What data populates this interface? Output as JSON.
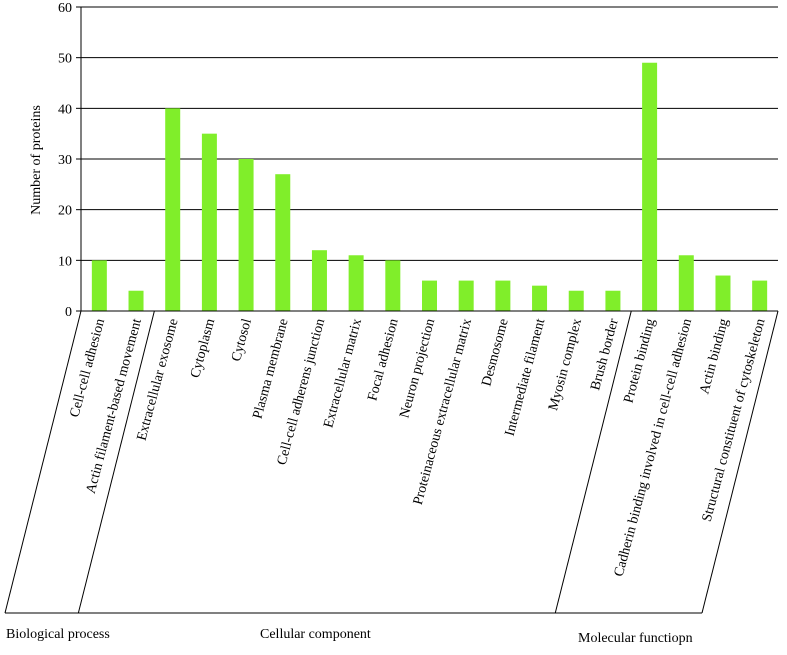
{
  "chart_data": {
    "type": "bar",
    "ylabel": "Number of proteins",
    "ylim": [
      0,
      60
    ],
    "yticks": [
      0,
      10,
      20,
      30,
      40,
      50,
      60
    ],
    "grid": true,
    "bar_color": "#80ee2a",
    "categories": [
      "Cell-cell adhesion",
      "Actin filament-based movement",
      "Extracellular exosome",
      "Cytoplasm",
      "Cytosol",
      "Plasma membrane",
      "Cell-cell adherens junction",
      "Extracellular matrix",
      "Focal adhesion",
      "Neuron projection",
      "Proteinaceous extracellular matrix",
      "Desmosome",
      "Intermediate filament",
      "Myosin complex",
      "Brush border",
      "Protein binding",
      "Cadherin binding involved in cell-cell adhesion",
      "Actin binding",
      "Structural constituent of cytoskeleton"
    ],
    "values": [
      10,
      4,
      40,
      35,
      30,
      27,
      12,
      11,
      10,
      6,
      6,
      6,
      5,
      4,
      4,
      49,
      11,
      7,
      6
    ],
    "groups": [
      {
        "name": "Biological process",
        "start": 0,
        "end": 1
      },
      {
        "name": "Cellular component",
        "start": 2,
        "end": 14
      },
      {
        "name": "Molecular functiopn",
        "start": 15,
        "end": 18
      }
    ]
  }
}
